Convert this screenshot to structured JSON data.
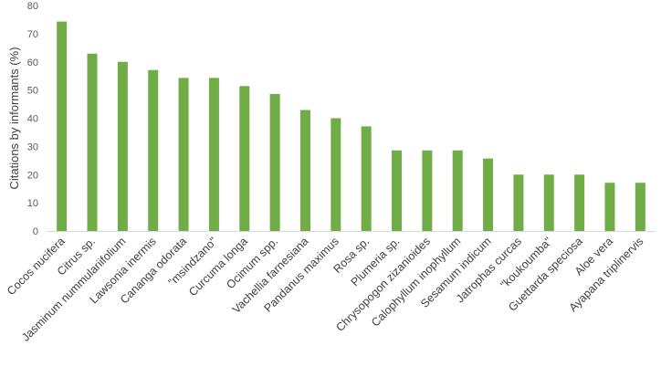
{
  "chart_data": {
    "type": "bar",
    "title": "",
    "xlabel": "",
    "ylabel": "Citations by informants (%)",
    "ylim": [
      0,
      80
    ],
    "yticks": [
      0,
      10,
      20,
      30,
      40,
      50,
      60,
      70,
      80
    ],
    "grid": false,
    "legend": "none",
    "bar_color": "#70ad47",
    "categories": [
      "Cocos nucifera",
      "Citrus sp.",
      "Jasminum nummulariifolium",
      "Lawsonia inermis",
      "Cananga odorata",
      "\"msindzano\"",
      "Curcuma longa",
      "Ocimum spp.",
      "Vachellia farnesiana",
      "Pandanus maximus",
      "Rosa sp.",
      "Plumeria sp.",
      "Chrysopogon zizanioides",
      "Calophyllum inophyllum",
      "Sesamum indicum",
      "Jatrophas curcas",
      "\"koukoumba\"",
      "Guettarda speciosa",
      "Aloe vera",
      "Ayapana triplinervis"
    ],
    "values": [
      74.3,
      62.9,
      60.0,
      57.1,
      54.3,
      54.3,
      51.4,
      48.6,
      42.9,
      40.0,
      37.1,
      28.6,
      28.6,
      28.6,
      25.7,
      20.0,
      20.0,
      20.0,
      17.1,
      17.1
    ]
  }
}
